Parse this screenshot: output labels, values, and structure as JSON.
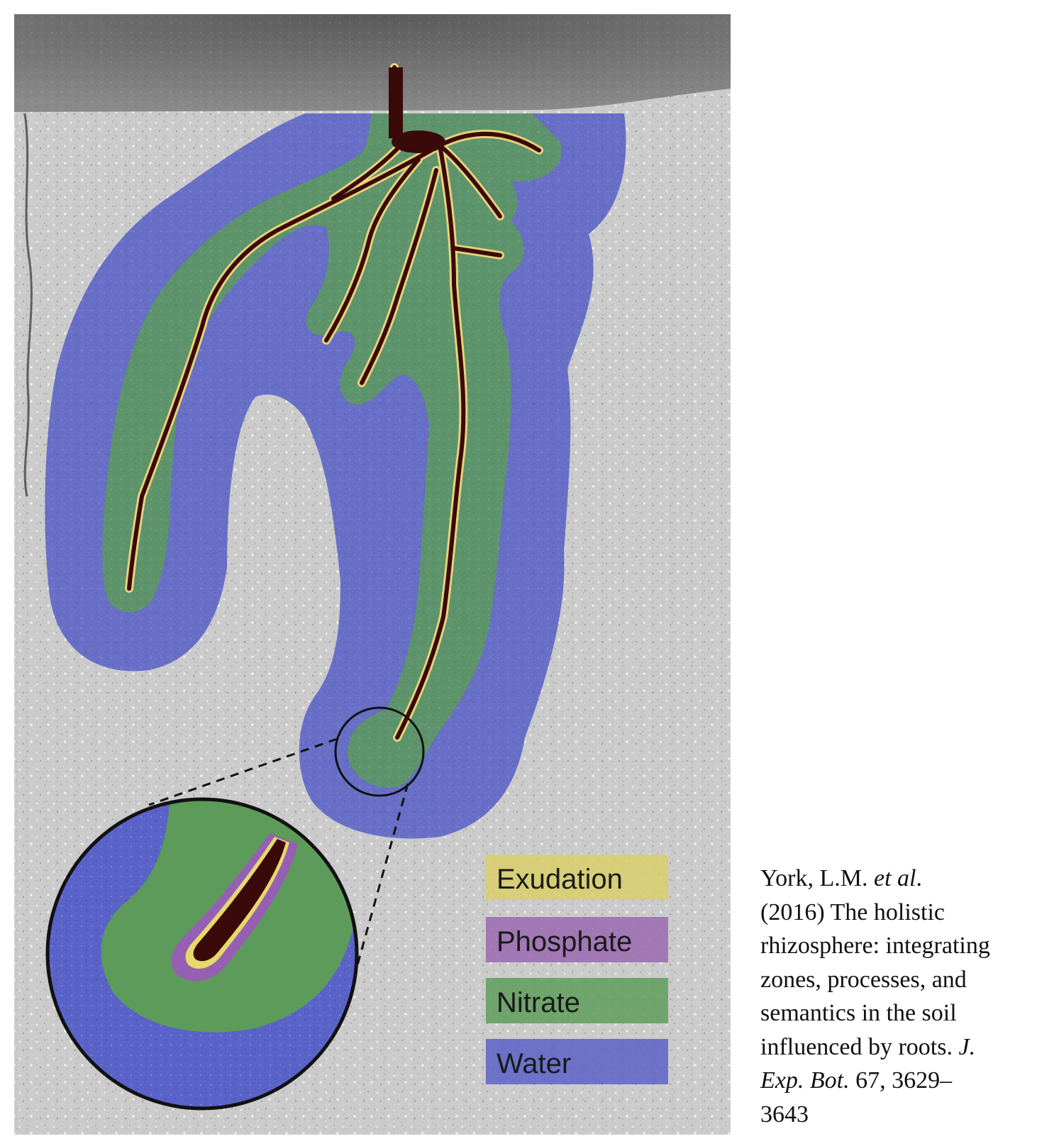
{
  "legend": {
    "items": [
      {
        "label": "Exudation",
        "color": "#d8cf6a"
      },
      {
        "label": "Phosphate",
        "color": "#9a6ab0"
      },
      {
        "label": "Nitrate",
        "color": "#5f9e5c"
      },
      {
        "label": "Water",
        "color": "#5a63c8"
      }
    ]
  },
  "citation": {
    "authors": "York, L.M.",
    "et_al": "et al",
    "period_after_et_al": ".",
    "year_and_title_1": "(2016) The holistic",
    "title_2": "rhizosphere: integrating",
    "title_3": "zones, processes, and",
    "title_4": "semantics in the soil",
    "title_5": "influenced by roots.",
    "journal_1": "J.",
    "journal_2": "Exp. Bot.",
    "volume_pages": "67, 3629–",
    "pages_end": "3643"
  },
  "colors": {
    "soil": "#cfcfcf",
    "sky": "#6d6d6d",
    "root": "#3a0a0a",
    "root_outline": "#e8d27a",
    "water_zone": "#4c55c4",
    "nitrate_zone": "#5d9b5a",
    "phosphate_zone": "#9560b3",
    "exudation_zone": "#ddd066"
  }
}
